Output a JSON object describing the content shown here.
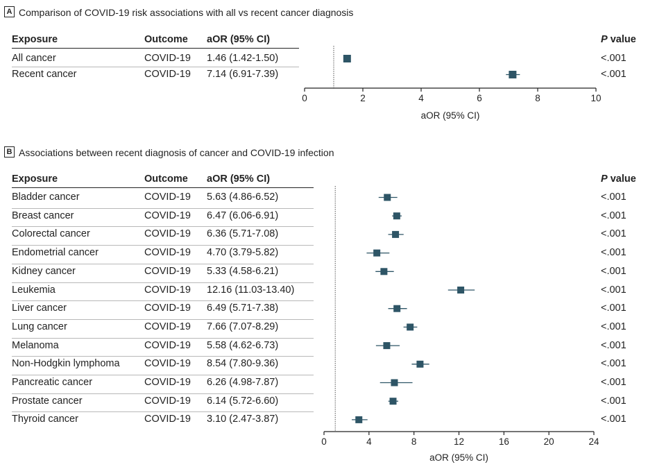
{
  "chart_data": [
    {
      "panel": "A",
      "type": "forest",
      "title": "Comparison of COVID-19 risk associations with all vs recent cancer diagnosis",
      "columns": {
        "exposure": "Exposure",
        "outcome": "Outcome",
        "estimate": "aOR (95% CI)",
        "p_prefix": "P",
        "p_suffix": " value"
      },
      "rows": [
        {
          "exposure": "All cancer",
          "outcome": "COVID-19",
          "label": "1.46 (1.42-1.50)",
          "aor": 1.46,
          "lo": 1.42,
          "hi": 1.5,
          "p": "<.001"
        },
        {
          "exposure": "Recent cancer",
          "outcome": "COVID-19",
          "label": "7.14 (6.91-7.39)",
          "aor": 7.14,
          "lo": 6.91,
          "hi": 7.39,
          "p": "<.001"
        }
      ],
      "xlim": [
        0,
        10
      ],
      "xticks": [
        0,
        2,
        4,
        6,
        8,
        10
      ],
      "reference_line": 1,
      "xlabel": "aOR (95% CI)"
    },
    {
      "panel": "B",
      "type": "forest",
      "title": "Associations between recent diagnosis of cancer and COVID-19 infection",
      "columns": {
        "exposure": "Exposure",
        "outcome": "Outcome",
        "estimate": "aOR (95% CI)",
        "p_prefix": "P",
        "p_suffix": " value"
      },
      "rows": [
        {
          "exposure": "Bladder cancer",
          "outcome": "COVID-19",
          "label": "5.63 (4.86-6.52)",
          "aor": 5.63,
          "lo": 4.86,
          "hi": 6.52,
          "p": "<.001"
        },
        {
          "exposure": "Breast cancer",
          "outcome": "COVID-19",
          "label": "6.47 (6.06-6.91)",
          "aor": 6.47,
          "lo": 6.06,
          "hi": 6.91,
          "p": "<.001"
        },
        {
          "exposure": "Colorectal cancer",
          "outcome": "COVID-19",
          "label": "6.36 (5.71-7.08)",
          "aor": 6.36,
          "lo": 5.71,
          "hi": 7.08,
          "p": "<.001"
        },
        {
          "exposure": "Endometrial cancer",
          "outcome": "COVID-19",
          "label": "4.70 (3.79-5.82)",
          "aor": 4.7,
          "lo": 3.79,
          "hi": 5.82,
          "p": "<.001"
        },
        {
          "exposure": "Kidney cancer",
          "outcome": "COVID-19",
          "label": "5.33 (4.58-6.21)",
          "aor": 5.33,
          "lo": 4.58,
          "hi": 6.21,
          "p": "<.001"
        },
        {
          "exposure": "Leukemia",
          "outcome": "COVID-19",
          "label": "12.16 (11.03-13.40)",
          "aor": 12.16,
          "lo": 11.03,
          "hi": 13.4,
          "p": "<.001"
        },
        {
          "exposure": "Liver cancer",
          "outcome": "COVID-19",
          "label": "6.49 (5.71-7.38)",
          "aor": 6.49,
          "lo": 5.71,
          "hi": 7.38,
          "p": "<.001"
        },
        {
          "exposure": "Lung cancer",
          "outcome": "COVID-19",
          "label": "7.66 (7.07-8.29)",
          "aor": 7.66,
          "lo": 7.07,
          "hi": 8.29,
          "p": "<.001"
        },
        {
          "exposure": "Melanoma",
          "outcome": "COVID-19",
          "label": "5.58 (4.62-6.73)",
          "aor": 5.58,
          "lo": 4.62,
          "hi": 6.73,
          "p": "<.001"
        },
        {
          "exposure": "Non-Hodgkin lymphoma",
          "outcome": "COVID-19",
          "label": "8.54 (7.80-9.36)",
          "aor": 8.54,
          "lo": 7.8,
          "hi": 9.36,
          "p": "<.001"
        },
        {
          "exposure": "Pancreatic cancer",
          "outcome": "COVID-19",
          "label": "6.26 (4.98-7.87)",
          "aor": 6.26,
          "lo": 4.98,
          "hi": 7.87,
          "p": "<.001"
        },
        {
          "exposure": "Prostate cancer",
          "outcome": "COVID-19",
          "label": "6.14 (5.72-6.60)",
          "aor": 6.14,
          "lo": 5.72,
          "hi": 6.6,
          "p": "<.001"
        },
        {
          "exposure": "Thyroid cancer",
          "outcome": "COVID-19",
          "label": "3.10 (2.47-3.87)",
          "aor": 3.1,
          "lo": 2.47,
          "hi": 3.87,
          "p": "<.001"
        }
      ],
      "xlim": [
        0,
        24
      ],
      "xticks": [
        0,
        4,
        8,
        12,
        16,
        20,
        24
      ],
      "reference_line": 1,
      "xlabel": "aOR (95% CI)"
    }
  ],
  "colors": {
    "marker": "#2e5566",
    "text": "#222222",
    "rule": "#222222",
    "row_rule": "#b8b8b8",
    "reference_line": "#555555"
  }
}
